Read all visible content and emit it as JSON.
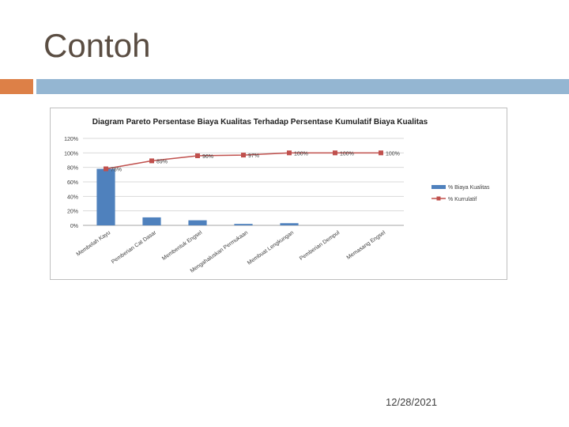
{
  "slide": {
    "title": "Contoh",
    "date": "12/28/2021"
  },
  "colors": {
    "accent_orange": "#dd8047",
    "accent_blue": "#94b6d2",
    "bar": "#4f81bd",
    "line": "#c0504d"
  },
  "chart_data": {
    "type": "bar",
    "title": "Diagram Pareto  Persentase Biaya Kualitas Terhadap Persentase Kumulatif Biaya Kualitas",
    "categories": [
      "Membelah Kayu",
      "Pemberian Cat Dasar",
      "Membentuk Engsel",
      "Mengahaluskan Permukaan",
      "Membuat Lengkungan",
      "Pemberian Dempul",
      "Memasang Engsel"
    ],
    "series": [
      {
        "name": "% Biaya Kualitas",
        "kind": "bar",
        "values": [
          78,
          11,
          7,
          2,
          3,
          0,
          0
        ]
      },
      {
        "name": "% Kurrulatif",
        "kind": "line",
        "values": [
          78,
          89,
          96,
          97,
          100,
          100,
          100
        ],
        "labels": [
          "78%",
          "89%",
          "96%",
          "97%",
          "100%",
          "100%",
          "100%"
        ]
      }
    ],
    "yticks": [
      "0%",
      "20%",
      "40%",
      "60%",
      "80%",
      "100%",
      "120%"
    ],
    "ylim": [
      0,
      120
    ],
    "grid": true,
    "legend_position": "right"
  }
}
